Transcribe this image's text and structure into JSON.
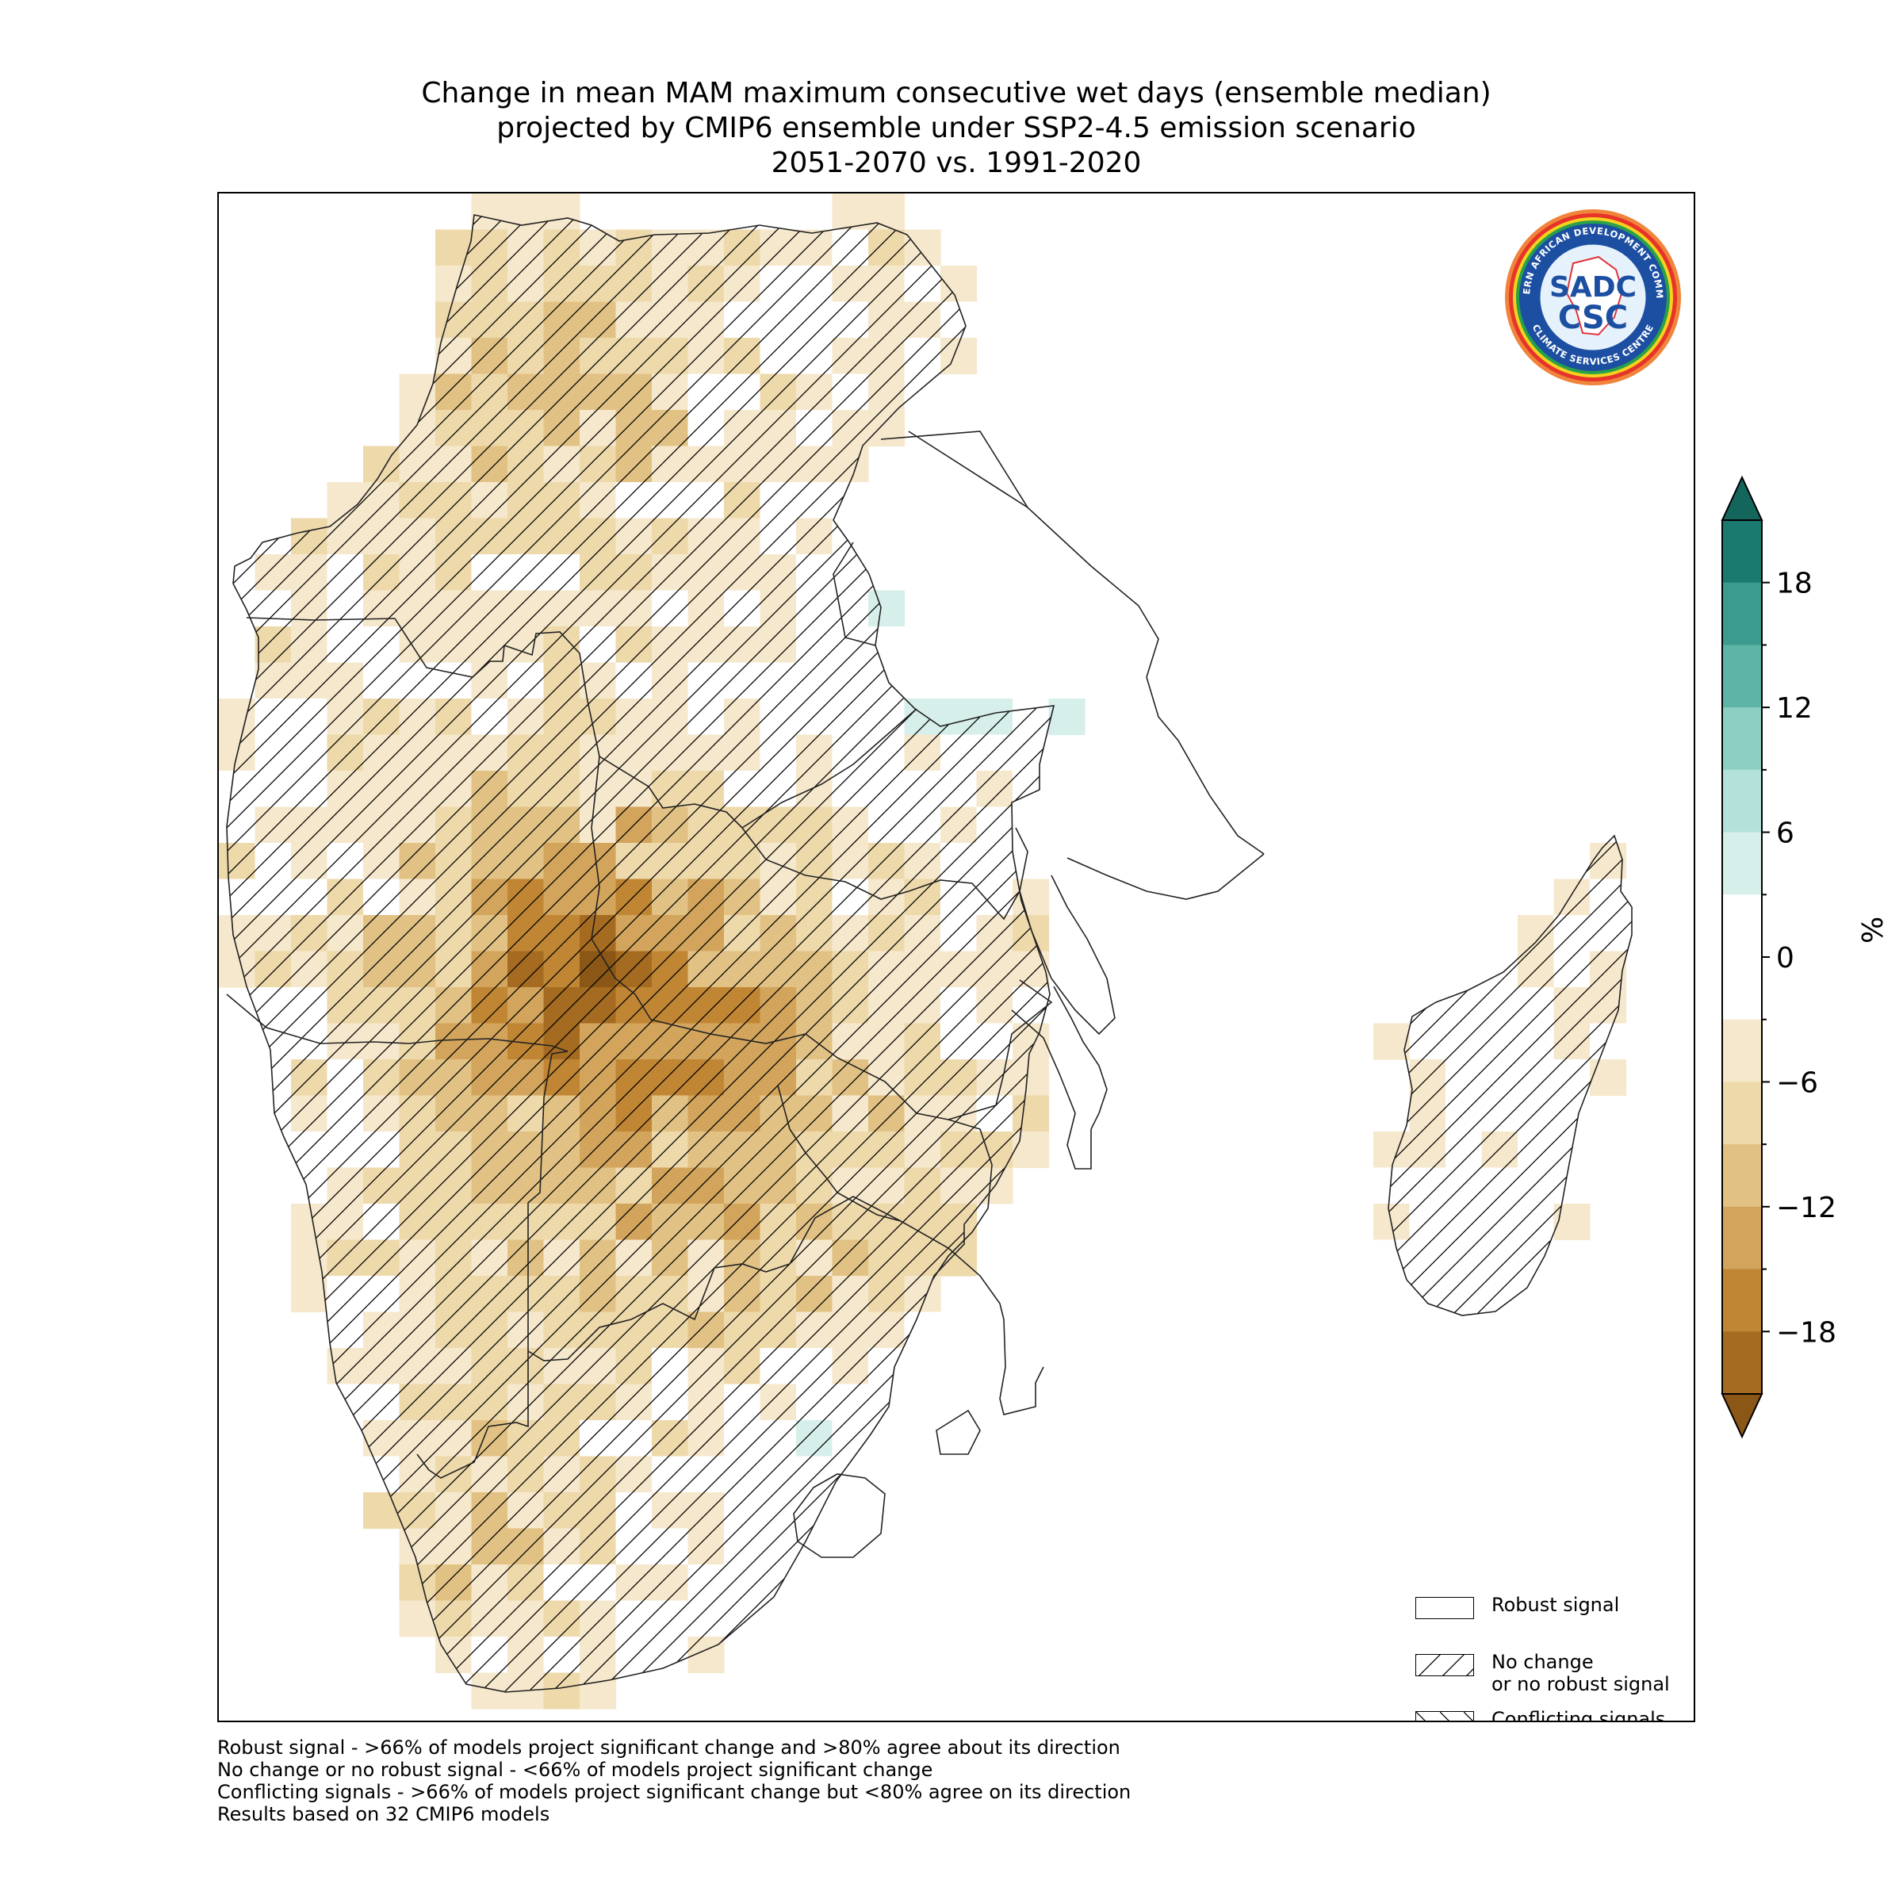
{
  "title": {
    "line1": "Change in mean MAM maximum consecutive wet days (ensemble median)",
    "line2": "projected by CMIP6 ensemble under SSP2-4.5 emission scenario",
    "line3": "2051-2070 vs. 1991-2020"
  },
  "colorbar": {
    "unit": "%",
    "ticks": [
      {
        "value": 18,
        "label": "18"
      },
      {
        "value": 12,
        "label": "12"
      },
      {
        "value": 6,
        "label": "6"
      },
      {
        "value": 0,
        "label": "0"
      },
      {
        "value": -6,
        "label": "−6"
      },
      {
        "value": -12,
        "label": "−12"
      },
      {
        "value": -18,
        "label": "−18"
      }
    ],
    "range": [
      -21,
      21
    ],
    "bins": [
      {
        "from": 18,
        "to": 21,
        "color": "#1a7a70"
      },
      {
        "from": 15,
        "to": 18,
        "color": "#3b9b8f"
      },
      {
        "from": 12,
        "to": 15,
        "color": "#5db5a7"
      },
      {
        "from": 9,
        "to": 12,
        "color": "#8dd0c3"
      },
      {
        "from": 6,
        "to": 9,
        "color": "#b4e2da"
      },
      {
        "from": 3,
        "to": 6,
        "color": "#d7efeb"
      },
      {
        "from": -3,
        "to": 3,
        "color": "#ffffff"
      },
      {
        "from": -6,
        "to": -3,
        "color": "#f6e8cc"
      },
      {
        "from": -9,
        "to": -6,
        "color": "#eed9ab"
      },
      {
        "from": -12,
        "to": -9,
        "color": "#e2c284"
      },
      {
        "from": -15,
        "to": -12,
        "color": "#d2a45c"
      },
      {
        "from": -18,
        "to": -15,
        "color": "#c18634"
      },
      {
        "from": -21,
        "to": -18,
        "color": "#a56b20"
      }
    ],
    "over_color": "#14665d",
    "under_color": "#8a5716"
  },
  "legend": {
    "robust": "Robust signal",
    "no_change_line1": "No change",
    "no_change_line2": "or no robust signal",
    "conflicting": "Conflicting signals"
  },
  "logo": {
    "name": "SADC CSC",
    "ring_text_top": "SOUTHERN AFRICAN DEVELOPMENT COMMUNITY",
    "ring_text_bottom": "CLIMATE SERVICES CENTRE",
    "monogram_top": "SADC",
    "monogram_bottom": "CSC"
  },
  "notes": [
    "Robust signal - >66% of models project significant change and >80% agree about its direction",
    "No change or no robust signal - <66% of models project significant change",
    "Conflicting signals - >66% of models project significant change but <80% agree on its direction",
    "Results based on 32 CMIP6 models"
  ]
}
